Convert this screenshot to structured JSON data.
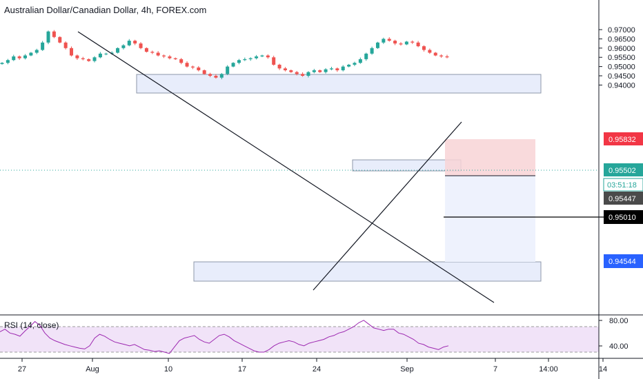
{
  "header": {
    "title": "Australian Dollar/Canadian Dollar, 4h, FOREX.com"
  },
  "rsi": {
    "label": "RSI (14, close)",
    "ticks": [
      "80.00",
      "40.00"
    ],
    "levels": [
      80,
      40
    ],
    "band": [
      70,
      30
    ],
    "color": "#9c27b0",
    "values": [
      62,
      66,
      60,
      58,
      55,
      63,
      70,
      78,
      72,
      60,
      52,
      48,
      45,
      42,
      40,
      38,
      36,
      35,
      40,
      52,
      58,
      55,
      50,
      46,
      44,
      42,
      40,
      42,
      38,
      34,
      33,
      31,
      32,
      30,
      28,
      38,
      48,
      52,
      54,
      56,
      50,
      46,
      44,
      50,
      56,
      58,
      54,
      48,
      44,
      40,
      36,
      32,
      30,
      30,
      34,
      40,
      44,
      46,
      48,
      46,
      42,
      40,
      44,
      46,
      48,
      50,
      54,
      56,
      60,
      62,
      66,
      70,
      76,
      80,
      74,
      68,
      66,
      64,
      66,
      66,
      60,
      58,
      54,
      50,
      44,
      42,
      38,
      36,
      34,
      38,
      40
    ]
  },
  "price_axis": {
    "ticks": [
      "0.97000",
      "0.96500",
      "0.96000",
      "0.95500",
      "0.95000",
      "0.94500",
      "0.94000"
    ],
    "tick_values": [
      0.97,
      0.965,
      0.96,
      0.955,
      0.95,
      0.945,
      0.94
    ]
  },
  "time_axis": {
    "labels": [
      "27",
      "Aug",
      "10",
      "17",
      "24",
      "Sep",
      "7",
      "14:00",
      "14"
    ]
  },
  "price_tags": {
    "stop": {
      "value": "0.95832",
      "color": "#f23645"
    },
    "current": {
      "value": "0.95502",
      "color": "#26a69a"
    },
    "countdown": {
      "value": "03:51:18",
      "color": "#26a69a"
    },
    "entry": {
      "value": "0.95447",
      "color": "#4a4a4a"
    },
    "level": {
      "value": "0.95010",
      "color": "#000000"
    },
    "target": {
      "value": "0.94544",
      "color": "#2962ff"
    }
  },
  "chart_data": {
    "type": "candlestick",
    "title": "Australian Dollar/Canadian Dollar, 4h, FOREX.com",
    "ylim": [
      0.9387,
      0.9732
    ],
    "x_tick_labels": [
      "27",
      "Aug",
      "10",
      "17",
      "24",
      "Sep",
      "7",
      "14:00",
      "14"
    ],
    "y_tick_labels": [
      "0.97000",
      "0.96500",
      "0.96000",
      "0.95500",
      "0.95000",
      "0.94500",
      "0.94000"
    ],
    "close": [
      0.952,
      0.9535,
      0.9555,
      0.9545,
      0.956,
      0.9575,
      0.959,
      0.963,
      0.969,
      0.966,
      0.963,
      0.96,
      0.956,
      0.9545,
      0.954,
      0.953,
      0.955,
      0.957,
      0.957,
      0.9575,
      0.96,
      0.9615,
      0.964,
      0.9625,
      0.96,
      0.958,
      0.9575,
      0.956,
      0.9555,
      0.9545,
      0.954,
      0.952,
      0.95,
      0.9495,
      0.948,
      0.946,
      0.945,
      0.944,
      0.946,
      0.95,
      0.952,
      0.9535,
      0.954,
      0.9545,
      0.9555,
      0.956,
      0.955,
      0.951,
      0.949,
      0.948,
      0.947,
      0.946,
      0.945,
      0.947,
      0.948,
      0.947,
      0.9485,
      0.949,
      0.948,
      0.95,
      0.951,
      0.952,
      0.954,
      0.957,
      0.96,
      0.963,
      0.965,
      0.964,
      0.9625,
      0.962,
      0.9635,
      0.963,
      0.961,
      0.959,
      0.9575,
      0.956,
      0.9555,
      0.955
    ],
    "supply_zone": [
      0.9633,
      0.9652
    ],
    "demand_zone": [
      0.9432,
      0.9452
    ],
    "mid_zone": [
      0.9549,
      0.956
    ],
    "trendline_down": {
      "from": [
        "Jul 30",
        0.9698
      ],
      "to": [
        "Sep 10",
        0.9413
      ]
    },
    "trendline_up": {
      "from": [
        "Aug 24",
        0.9424
      ],
      "to": [
        "Sep 4",
        0.96
      ]
    },
    "position": {
      "entry": 0.95447,
      "stop": 0.95832,
      "target": 0.94544
    },
    "horizontal_level": 0.9501,
    "last_price": 0.95502
  }
}
